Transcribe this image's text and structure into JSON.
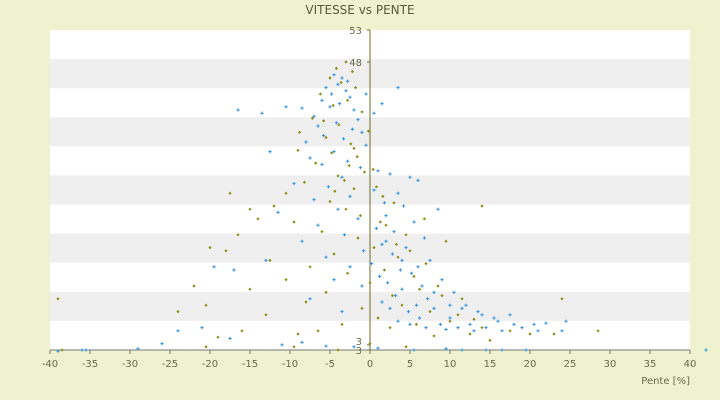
{
  "chart_data": {
    "type": "scatter",
    "title": "VITESSE vs PENTE",
    "xlabel": "Pente [%]",
    "ylabel": "",
    "xlim": [
      -40,
      40
    ],
    "ylim": [
      3,
      53
    ],
    "x_ticks": [
      "-40",
      "-35",
      "-30",
      "-25",
      "-20",
      "-15",
      "-10",
      "-5",
      "0",
      "5",
      "10",
      "15",
      "20",
      "25",
      "30",
      "35",
      "40"
    ],
    "y_ticks_visible": [
      "53",
      "48",
      "3",
      "3"
    ],
    "grid": "horizontal bands",
    "legend": "none",
    "series": [
      {
        "color": "#2f8fe0",
        "marker": "plus",
        "points": [
          [
            -4.5,
            46.0
          ],
          [
            -3.5,
            45.5
          ],
          [
            -2.8,
            45.0
          ],
          [
            -4.0,
            44.5
          ],
          [
            -5.5,
            44.0
          ],
          [
            -3.0,
            43.5
          ],
          [
            -4.8,
            43.0
          ],
          [
            -2.5,
            42.5
          ],
          [
            -6.0,
            42.0
          ],
          [
            -3.8,
            41.5
          ],
          [
            -5.0,
            41.0
          ],
          [
            -2.0,
            40.5
          ],
          [
            -16.5,
            40.5
          ],
          [
            -13.5,
            40.0
          ],
          [
            -10.5,
            41.0
          ],
          [
            -8.5,
            40.8
          ],
          [
            -7.0,
            39.5
          ],
          [
            -1.5,
            39.0
          ],
          [
            -4.2,
            38.5
          ],
          [
            -6.5,
            38.0
          ],
          [
            -2.2,
            37.5
          ],
          [
            -1.0,
            37.0
          ],
          [
            -5.8,
            36.5
          ],
          [
            -3.3,
            36.0
          ],
          [
            -8.0,
            35.5
          ],
          [
            -0.5,
            35.0
          ],
          [
            -12.5,
            34.0
          ],
          [
            -4.5,
            34.0
          ],
          [
            -7.5,
            33.0
          ],
          [
            -2.8,
            32.5
          ],
          [
            -6.0,
            32.0
          ],
          [
            -1.2,
            31.5
          ],
          [
            1.0,
            31.0
          ],
          [
            2.5,
            30.5
          ],
          [
            -3.5,
            30.0
          ],
          [
            5.0,
            30.0
          ],
          [
            6.0,
            29.5
          ],
          [
            -9.5,
            29.0
          ],
          [
            -5.2,
            28.5
          ],
          [
            0.5,
            28.0
          ],
          [
            3.5,
            27.5
          ],
          [
            -2.5,
            27.0
          ],
          [
            -7.0,
            26.5
          ],
          [
            1.8,
            26.0
          ],
          [
            4.2,
            25.5
          ],
          [
            -4.0,
            25.0
          ],
          [
            8.5,
            25.0
          ],
          [
            -11.5,
            24.5
          ],
          [
            2.0,
            24.0
          ],
          [
            -1.5,
            23.5
          ],
          [
            5.5,
            23.0
          ],
          [
            -6.5,
            22.5
          ],
          [
            0.8,
            22.0
          ],
          [
            3.0,
            21.5
          ],
          [
            -3.2,
            21.0
          ],
          [
            6.8,
            20.5
          ],
          [
            -8.5,
            20.0
          ],
          [
            1.5,
            19.5
          ],
          [
            4.5,
            19.0
          ],
          [
            -0.8,
            18.5
          ],
          [
            2.8,
            18.0
          ],
          [
            -5.5,
            17.5
          ],
          [
            7.5,
            17.0
          ],
          [
            0.2,
            16.5
          ],
          [
            -2.5,
            16.0
          ],
          [
            3.8,
            15.5
          ],
          [
            -17.0,
            15.5
          ],
          [
            -19.5,
            16.0
          ],
          [
            -13.0,
            17.0
          ],
          [
            5.2,
            15.0
          ],
          [
            1.2,
            14.5
          ],
          [
            9.0,
            14.0
          ],
          [
            -4.5,
            14.0
          ],
          [
            2.2,
            13.5
          ],
          [
            6.5,
            13.0
          ],
          [
            -1.0,
            13.0
          ],
          [
            4.0,
            12.5
          ],
          [
            10.5,
            12.0
          ],
          [
            3.2,
            11.5
          ],
          [
            -7.5,
            11.0
          ],
          [
            7.2,
            11.0
          ],
          [
            1.5,
            10.5
          ],
          [
            5.8,
            10.0
          ],
          [
            12.0,
            10.0
          ],
          [
            2.5,
            9.5
          ],
          [
            8.0,
            9.5
          ],
          [
            -3.5,
            9.0
          ],
          [
            4.8,
            9.0
          ],
          [
            14.0,
            8.5
          ],
          [
            6.2,
            8.0
          ],
          [
            10.0,
            8.0
          ],
          [
            3.5,
            7.5
          ],
          [
            16.0,
            7.5
          ],
          [
            8.8,
            7.0
          ],
          [
            12.5,
            7.0
          ],
          [
            5.0,
            7.0
          ],
          [
            18.0,
            7.0
          ],
          [
            11.0,
            6.5
          ],
          [
            14.5,
            6.5
          ],
          [
            20.5,
            7.0
          ],
          [
            22.0,
            7.2
          ],
          [
            24.5,
            7.5
          ],
          [
            9.5,
            6.2
          ],
          [
            16.5,
            6.0
          ],
          [
            13.0,
            6.0
          ],
          [
            19.0,
            6.5
          ],
          [
            7.0,
            6.5
          ],
          [
            -24.0,
            6.0
          ],
          [
            -21.0,
            6.5
          ],
          [
            -17.5,
            4.8
          ],
          [
            -11.0,
            3.8
          ],
          [
            -8.5,
            4.2
          ],
          [
            -5.5,
            3.6
          ],
          [
            -2.0,
            3.5
          ],
          [
            1.0,
            3.3
          ],
          [
            5.5,
            3.0
          ],
          [
            9.5,
            3.2
          ],
          [
            11.5,
            3.0
          ],
          [
            14.5,
            3.0
          ],
          [
            16.5,
            3.0
          ],
          [
            19.5,
            3.0
          ],
          [
            -29.0,
            3.2
          ],
          [
            -35.5,
            3.0
          ],
          [
            -36.0,
            3.0
          ],
          [
            -39.0,
            2.8
          ],
          [
            -26.0,
            4.0
          ],
          [
            42.0,
            3.0
          ],
          [
            3.5,
            44.0
          ],
          [
            1.5,
            41.5
          ],
          [
            0.5,
            40.0
          ],
          [
            -0.5,
            43.0
          ],
          [
            2.0,
            20.0
          ],
          [
            4.0,
            17.0
          ],
          [
            6.0,
            16.0
          ],
          [
            8.0,
            12.0
          ],
          [
            10.0,
            10.0
          ],
          [
            15.5,
            8.0
          ],
          [
            17.5,
            8.5
          ],
          [
            13.5,
            9.0
          ],
          [
            11.5,
            9.5
          ],
          [
            21.0,
            6.0
          ],
          [
            24.0,
            6.0
          ]
        ]
      },
      {
        "color": "#8a8a12",
        "marker": "diamond",
        "points": [
          [
            -3.0,
            48.0
          ],
          [
            -4.2,
            47.0
          ],
          [
            -2.2,
            46.5
          ],
          [
            -5.0,
            45.5
          ],
          [
            -3.6,
            44.8
          ],
          [
            -1.8,
            44.0
          ],
          [
            -6.2,
            43.0
          ],
          [
            -2.8,
            42.0
          ],
          [
            -4.6,
            41.2
          ],
          [
            -1.0,
            40.2
          ],
          [
            -7.2,
            39.2
          ],
          [
            -3.9,
            38.2
          ],
          [
            -0.2,
            37.2
          ],
          [
            -5.5,
            36.2
          ],
          [
            -2.4,
            35.2
          ],
          [
            -9.0,
            34.2
          ],
          [
            -1.6,
            33.2
          ],
          [
            -6.8,
            32.2
          ],
          [
            0.4,
            31.2
          ],
          [
            -4.0,
            30.2
          ],
          [
            -8.2,
            29.2
          ],
          [
            -2.0,
            28.2
          ],
          [
            -10.5,
            27.5
          ],
          [
            1.6,
            27.0
          ],
          [
            -17.5,
            27.5
          ],
          [
            -15.0,
            25.0
          ],
          [
            -20.0,
            19.0
          ],
          [
            -16.5,
            21.0
          ],
          [
            -14.0,
            23.5
          ],
          [
            -5.0,
            26.2
          ],
          [
            -12.0,
            25.5
          ],
          [
            3.0,
            26.0
          ],
          [
            -3.0,
            25.0
          ],
          [
            6.8,
            23.5
          ],
          [
            -9.5,
            23.0
          ],
          [
            2.0,
            22.5
          ],
          [
            -6.0,
            21.5
          ],
          [
            4.5,
            21.0
          ],
          [
            -1.5,
            20.5
          ],
          [
            9.5,
            20.0
          ],
          [
            -18.0,
            18.5
          ],
          [
            0.5,
            19.0
          ],
          [
            -4.5,
            18.0
          ],
          [
            3.5,
            17.5
          ],
          [
            -12.5,
            17.0
          ],
          [
            7.0,
            16.5
          ],
          [
            -7.5,
            16.0
          ],
          [
            1.8,
            15.5
          ],
          [
            -2.8,
            15.0
          ],
          [
            5.5,
            14.5
          ],
          [
            -22.0,
            13.0
          ],
          [
            -10.5,
            14.0
          ],
          [
            0.0,
            13.5
          ],
          [
            8.5,
            13.0
          ],
          [
            -15.0,
            12.5
          ],
          [
            -5.5,
            12.0
          ],
          [
            2.8,
            11.5
          ],
          [
            11.5,
            11.0
          ],
          [
            -20.5,
            10.0
          ],
          [
            -8.0,
            10.5
          ],
          [
            4.0,
            10.0
          ],
          [
            -1.0,
            9.5
          ],
          [
            7.5,
            9.0
          ],
          [
            -24.0,
            9.0
          ],
          [
            -13.0,
            8.5
          ],
          [
            1.0,
            8.0
          ],
          [
            10.0,
            7.5
          ],
          [
            -3.5,
            7.0
          ],
          [
            5.8,
            7.0
          ],
          [
            14.0,
            6.5
          ],
          [
            -16.0,
            6.0
          ],
          [
            -6.5,
            6.0
          ],
          [
            2.5,
            6.5
          ],
          [
            12.5,
            5.5
          ],
          [
            -19.0,
            5.0
          ],
          [
            -9.0,
            5.5
          ],
          [
            8.0,
            5.2
          ],
          [
            -39.0,
            11.0
          ],
          [
            -38.5,
            3.0
          ],
          [
            -20.5,
            3.5
          ],
          [
            -9.5,
            3.5
          ],
          [
            -4.0,
            3.0
          ],
          [
            0.0,
            4.0
          ],
          [
            4.5,
            3.5
          ],
          [
            15.0,
            4.5
          ],
          [
            17.5,
            6.0
          ],
          [
            20.0,
            5.5
          ],
          [
            23.0,
            5.5
          ],
          [
            28.5,
            6.0
          ],
          [
            24.0,
            11.0
          ],
          [
            14.0,
            25.5
          ],
          [
            -2.0,
            34.5
          ],
          [
            -3.2,
            29.5
          ],
          [
            -4.8,
            33.8
          ],
          [
            -5.8,
            38.8
          ],
          [
            -8.8,
            37.0
          ],
          [
            -1.2,
            24.0
          ],
          [
            0.8,
            28.5
          ],
          [
            1.3,
            23.0
          ],
          [
            3.3,
            19.5
          ],
          [
            5.0,
            18.5
          ],
          [
            6.2,
            12.5
          ],
          [
            9.0,
            11.5
          ],
          [
            11.0,
            8.5
          ],
          [
            13.0,
            7.8
          ],
          [
            -0.7,
            30.8
          ],
          [
            -2.6,
            31.8
          ],
          [
            -4.4,
            27.8
          ]
        ]
      }
    ]
  }
}
